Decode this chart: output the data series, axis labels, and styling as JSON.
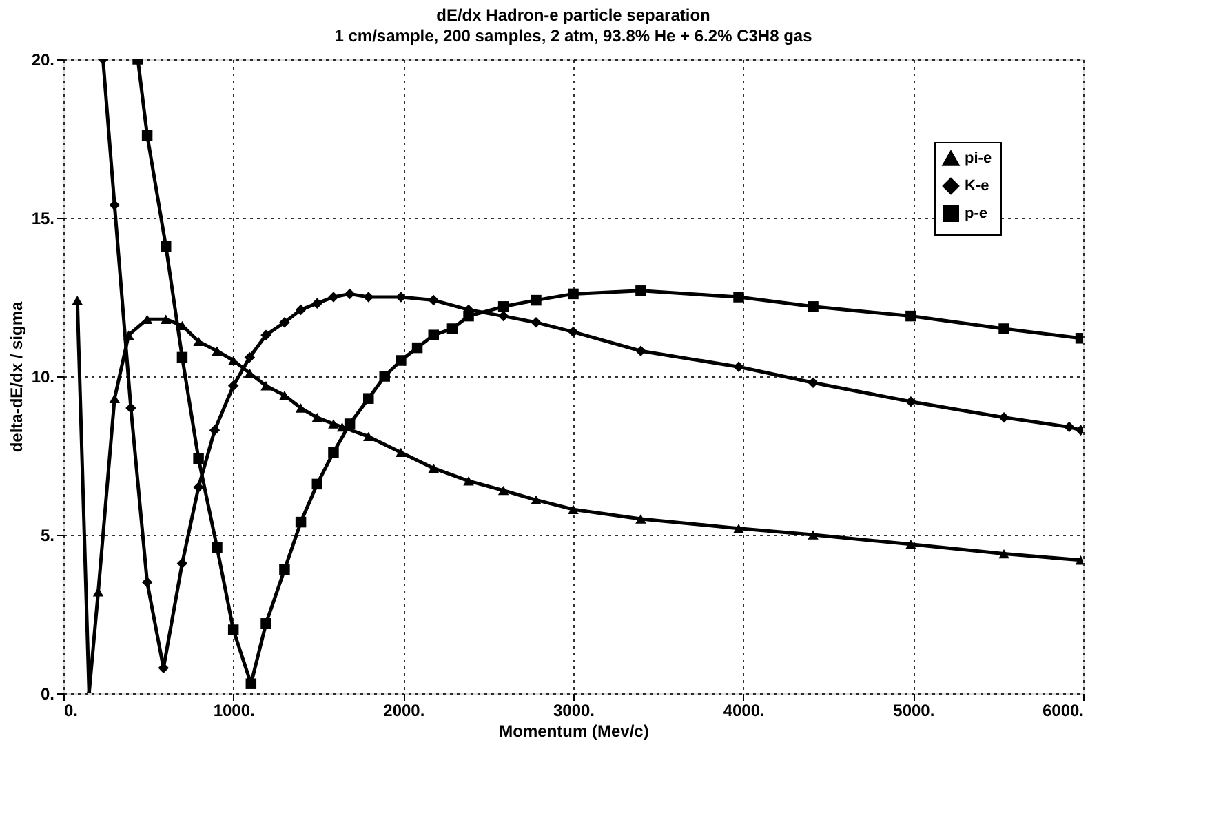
{
  "chart_data": {
    "type": "line",
    "title": "dE/dx    Hadron-e particle separation",
    "subtitle": "1 cm/sample, 200 samples, 2 atm, 93.8% He + 6.2% C3H8 gas",
    "xlabel": "Momentum (Mev/c)",
    "ylabel": "delta-dE/dx / sigma",
    "xlim": [
      0,
      6000
    ],
    "ylim": [
      0,
      20
    ],
    "xticks": [
      {
        "value": 0,
        "label": "0."
      },
      {
        "value": 1000,
        "label": "1000."
      },
      {
        "value": 2000,
        "label": "2000."
      },
      {
        "value": 3000,
        "label": "3000."
      },
      {
        "value": 4000,
        "label": "4000."
      },
      {
        "value": 5000,
        "label": "5000."
      },
      {
        "value": 6000,
        "label": "6000."
      }
    ],
    "yticks": [
      {
        "value": 0,
        "label": "0."
      },
      {
        "value": 5,
        "label": "5."
      },
      {
        "value": 10,
        "label": "10."
      },
      {
        "value": 15,
        "label": "15."
      },
      {
        "value": 20,
        "label": "20."
      }
    ],
    "grid": true,
    "legend": "top right",
    "line_style": "solid",
    "series": [
      {
        "name": "pi-e",
        "color": "#000000",
        "marker": "triangle",
        "x": [
          82,
          151,
          205,
          301,
          384,
          493,
          603,
          699,
          795,
          904,
          1000,
          1096,
          1192,
          1301,
          1397,
          1493,
          1589,
          1640,
          1795,
          1986,
          2178,
          2384,
          2589,
          2781,
          3000,
          3397,
          3973,
          4411,
          4986,
          5534,
          5986
        ],
        "values": [
          12.4,
          0,
          3.2,
          9.3,
          11.3,
          11.8,
          11.8,
          11.6,
          11.1,
          10.8,
          10.5,
          10.1,
          9.7,
          9.4,
          9.0,
          8.7,
          8.5,
          8.4,
          8.1,
          7.6,
          7.1,
          6.7,
          6.4,
          6.1,
          5.8,
          5.5,
          5.2,
          5.0,
          4.7,
          4.4,
          4.2
        ]
      },
      {
        "name": "K-e",
        "color": "#000000",
        "marker": "diamond",
        "x": [
          233,
          301,
          397,
          493,
          589,
          699,
          795,
          890,
          1000,
          1096,
          1192,
          1301,
          1397,
          1493,
          1589,
          1685,
          1795,
          1986,
          2178,
          2384,
          2589,
          2781,
          3000,
          3397,
          3973,
          4411,
          4986,
          5534,
          5918,
          5986
        ],
        "values": [
          20,
          15.4,
          9.0,
          3.5,
          0.8,
          4.1,
          6.5,
          8.3,
          9.7,
          10.6,
          11.3,
          11.7,
          12.1,
          12.3,
          12.5,
          12.6,
          12.5,
          12.5,
          12.4,
          12.1,
          11.9,
          11.7,
          11.4,
          10.8,
          10.3,
          9.8,
          9.2,
          8.7,
          8.4,
          8.3
        ]
      },
      {
        "name": "p-e",
        "color": "#000000",
        "marker": "square",
        "x": [
          438,
          493,
          603,
          699,
          795,
          904,
          1000,
          1104,
          1192,
          1301,
          1397,
          1493,
          1589,
          1685,
          1795,
          1890,
          1986,
          2082,
          2178,
          2288,
          2384,
          2589,
          2781,
          3000,
          3397,
          3973,
          4411,
          4986,
          5534,
          5986
        ],
        "values": [
          20,
          17.6,
          14.1,
          10.6,
          7.4,
          4.6,
          2.0,
          0.3,
          2.2,
          3.9,
          5.4,
          6.6,
          7.6,
          8.5,
          9.3,
          10.0,
          10.5,
          10.9,
          11.3,
          11.5,
          11.9,
          12.2,
          12.4,
          12.6,
          12.7,
          12.5,
          12.2,
          11.9,
          11.5,
          11.2
        ]
      }
    ]
  }
}
